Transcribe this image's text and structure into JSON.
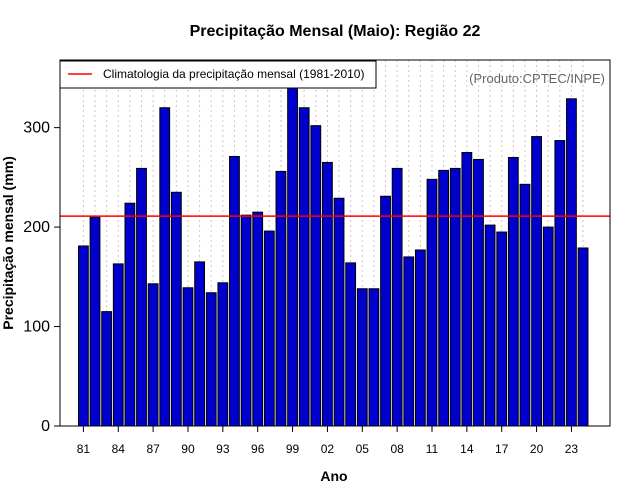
{
  "chart_data": {
    "type": "bar",
    "title": "Precipitação Mensal (Maio): Região 22",
    "xlabel": "Ano",
    "ylabel": "Precipitação mensal (mm)",
    "credit": "(Produto:CPTEC/INPE)",
    "ylim": [
      0,
      368
    ],
    "yticks": [
      0,
      100,
      200,
      300
    ],
    "categories": [
      "81",
      "82",
      "83",
      "84",
      "85",
      "86",
      "87",
      "88",
      "89",
      "90",
      "91",
      "92",
      "93",
      "94",
      "95",
      "96",
      "97",
      "98",
      "99",
      "00",
      "01",
      "02",
      "03",
      "04",
      "05",
      "06",
      "07",
      "08",
      "09",
      "10",
      "11",
      "12",
      "13",
      "14",
      "15",
      "16",
      "17",
      "18",
      "19",
      "20",
      "21",
      "22",
      "23",
      "24"
    ],
    "xtick_labels": [
      "81",
      "84",
      "87",
      "90",
      "93",
      "96",
      "99",
      "02",
      "05",
      "08",
      "11",
      "14",
      "17",
      "20",
      "23"
    ],
    "values": [
      181,
      210,
      115,
      163,
      224,
      259,
      143,
      320,
      235,
      139,
      165,
      134,
      144,
      271,
      212,
      215,
      196,
      256,
      350,
      320,
      302,
      265,
      229,
      164,
      138,
      138,
      231,
      259,
      170,
      177,
      248,
      257,
      259,
      275,
      268,
      202,
      195,
      270,
      243,
      291,
      200,
      287,
      329,
      179
    ],
    "series": [
      {
        "name": "Precipitação mensal",
        "color": "#0000cc",
        "values": [
          181,
          210,
          115,
          163,
          224,
          259,
          143,
          320,
          235,
          139,
          165,
          134,
          144,
          271,
          212,
          215,
          196,
          256,
          350,
          320,
          302,
          265,
          229,
          164,
          138,
          138,
          231,
          259,
          170,
          177,
          248,
          257,
          259,
          275,
          268,
          202,
          195,
          270,
          243,
          291,
          200,
          287,
          329,
          179
        ]
      }
    ],
    "reference_line": {
      "label": "Climatologia da precipitação mensal (1981-2010)",
      "value": 211,
      "color": "#ff0000"
    },
    "grid": "vertical dotted",
    "legend": "top-left"
  }
}
